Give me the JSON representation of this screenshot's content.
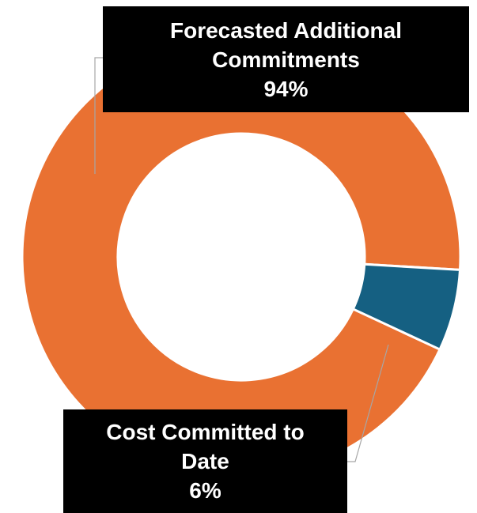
{
  "chart_data": {
    "type": "pie",
    "variant": "donut",
    "slices": [
      {
        "label": "Forecasted Additional Commitments",
        "value": 94,
        "value_label": "94%",
        "color": "#E97132"
      },
      {
        "label": "Cost Committed to Date",
        "value": 6,
        "value_label": "6%",
        "color": "#156082"
      }
    ],
    "labels": [
      {
        "lines": [
          "Forecasted Additional",
          "Commitments"
        ],
        "value_label": "94%"
      },
      {
        "lines": [
          "Cost Committed to",
          "Date"
        ],
        "value_label": "6%"
      }
    ],
    "legend": "none",
    "leader_line_color": "#A6A6A6"
  }
}
